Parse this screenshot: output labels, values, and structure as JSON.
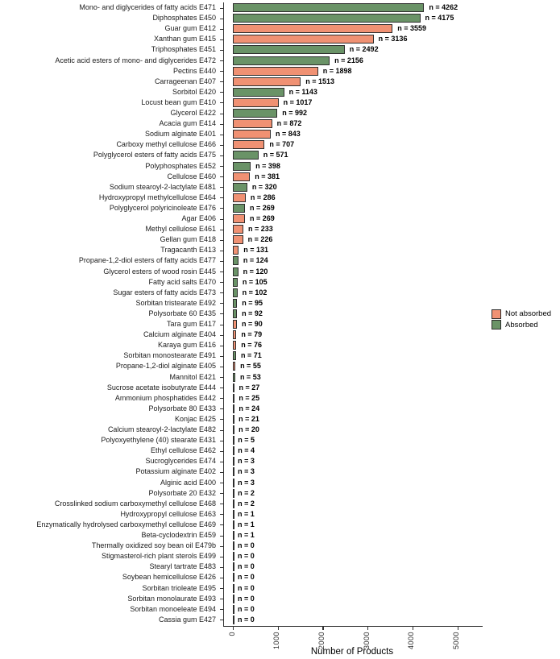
{
  "chart_data": {
    "type": "bar",
    "orientation": "horizontal",
    "title": "",
    "xlabel": "Number of Products",
    "ylabel": "",
    "xlim": [
      0,
      5500
    ],
    "xticks": [
      0,
      1000,
      2000,
      3000,
      4000,
      5000
    ],
    "grid": false,
    "legend_position": "right-middle",
    "value_label_format": "n = {value}",
    "groups": [
      {
        "name": "Not absorbed",
        "color": "#F09173"
      },
      {
        "name": "Absorbed",
        "color": "#6A9367"
      }
    ],
    "bar_border_color": "#2d2d2d",
    "bars": [
      {
        "label": "Mono- and diglycerides of fatty acids E471",
        "value": 4262,
        "group": "Absorbed"
      },
      {
        "label": "Diphosphates E450",
        "value": 4175,
        "group": "Absorbed"
      },
      {
        "label": "Guar gum E412",
        "value": 3559,
        "group": "Not absorbed"
      },
      {
        "label": "Xanthan gum E415",
        "value": 3136,
        "group": "Not absorbed"
      },
      {
        "label": "Triphosphates E451",
        "value": 2492,
        "group": "Absorbed"
      },
      {
        "label": "Acetic acid esters of mono- and diglycerides E472",
        "value": 2156,
        "group": "Absorbed"
      },
      {
        "label": "Pectins E440",
        "value": 1898,
        "group": "Not absorbed"
      },
      {
        "label": "Carrageenan E407",
        "value": 1513,
        "group": "Not absorbed"
      },
      {
        "label": "Sorbitol E420",
        "value": 1143,
        "group": "Absorbed"
      },
      {
        "label": "Locust bean gum E410",
        "value": 1017,
        "group": "Not absorbed"
      },
      {
        "label": "Glycerol E422",
        "value": 992,
        "group": "Absorbed"
      },
      {
        "label": "Acacia gum E414",
        "value": 872,
        "group": "Not absorbed"
      },
      {
        "label": "Sodium alginate E401",
        "value": 843,
        "group": "Not absorbed"
      },
      {
        "label": "Carboxy methyl cellulose E466",
        "value": 707,
        "group": "Not absorbed"
      },
      {
        "label": "Polyglycerol esters of fatty acids E475",
        "value": 571,
        "group": "Absorbed"
      },
      {
        "label": "Polyphosphates E452",
        "value": 398,
        "group": "Absorbed"
      },
      {
        "label": "Cellulose E460",
        "value": 381,
        "group": "Not absorbed"
      },
      {
        "label": "Sodium stearoyl-2-lactylate E481",
        "value": 320,
        "group": "Absorbed"
      },
      {
        "label": "Hydroxypropyl methylcellulose E464",
        "value": 286,
        "group": "Not absorbed"
      },
      {
        "label": "Polyglycerol polyricinoleate E476",
        "value": 269,
        "group": "Absorbed"
      },
      {
        "label": "Agar E406",
        "value": 269,
        "group": "Not absorbed"
      },
      {
        "label": "Methyl cellulose E461",
        "value": 233,
        "group": "Not absorbed"
      },
      {
        "label": "Gellan gum E418",
        "value": 226,
        "group": "Not absorbed"
      },
      {
        "label": "Tragacanth E413",
        "value": 131,
        "group": "Not absorbed"
      },
      {
        "label": "Propane-1,2-diol esters of fatty acids E477",
        "value": 124,
        "group": "Absorbed"
      },
      {
        "label": "Glycerol esters of wood rosin E445",
        "value": 120,
        "group": "Absorbed"
      },
      {
        "label": "Fatty acid salts E470",
        "value": 105,
        "group": "Absorbed"
      },
      {
        "label": "Sugar esters of fatty acids E473",
        "value": 102,
        "group": "Absorbed"
      },
      {
        "label": "Sorbitan tristearate E492",
        "value": 95,
        "group": "Absorbed"
      },
      {
        "label": "Polysorbate 60 E435",
        "value": 92,
        "group": "Absorbed"
      },
      {
        "label": "Tara gum E417",
        "value": 90,
        "group": "Not absorbed"
      },
      {
        "label": "Calcium alginate E404",
        "value": 79,
        "group": "Not absorbed"
      },
      {
        "label": "Karaya gum E416",
        "value": 76,
        "group": "Not absorbed"
      },
      {
        "label": "Sorbitan monostearate E491",
        "value": 71,
        "group": "Absorbed"
      },
      {
        "label": "Propane-1,2-diol alginate E405",
        "value": 55,
        "group": "Not absorbed"
      },
      {
        "label": "Mannitol E421",
        "value": 53,
        "group": "Absorbed"
      },
      {
        "label": "Sucrose acetate isobutyrate E444",
        "value": 27,
        "group": "Absorbed"
      },
      {
        "label": "Ammonium phosphatides E442",
        "value": 25,
        "group": "Absorbed"
      },
      {
        "label": "Polysorbate 80 E433",
        "value": 24,
        "group": "Absorbed"
      },
      {
        "label": "Konjac E425",
        "value": 21,
        "group": "Not absorbed"
      },
      {
        "label": "Calcium stearoyl-2-lactylate E482",
        "value": 20,
        "group": "Absorbed"
      },
      {
        "label": "Polyoxyethylene (40) stearate E431",
        "value": 5,
        "group": "Absorbed"
      },
      {
        "label": "Ethyl cellulose E462",
        "value": 4,
        "group": "Not absorbed"
      },
      {
        "label": "Sucroglycerides E474",
        "value": 3,
        "group": "Absorbed"
      },
      {
        "label": "Potassium alginate E402",
        "value": 3,
        "group": "Not absorbed"
      },
      {
        "label": "Alginic acid E400",
        "value": 3,
        "group": "Not absorbed"
      },
      {
        "label": "Polysorbate 20 E432",
        "value": 2,
        "group": "Absorbed"
      },
      {
        "label": "Crosslinked sodium carboxymethyl cellulose E468",
        "value": 2,
        "group": "Not absorbed"
      },
      {
        "label": "Hydroxypropyl cellulose E463",
        "value": 1,
        "group": "Not absorbed"
      },
      {
        "label": "Enzymatically hydrolysed carboxymethyl cellulose E469",
        "value": 1,
        "group": "Not absorbed"
      },
      {
        "label": "Beta-cyclodextrin E459",
        "value": 1,
        "group": "Not absorbed"
      },
      {
        "label": "Thermally oxidized soy bean oil E479b",
        "value": 0,
        "group": "Absorbed"
      },
      {
        "label": "Stigmasterol-rich plant sterols E499",
        "value": 0,
        "group": "Absorbed"
      },
      {
        "label": "Stearyl tartrate E483",
        "value": 0,
        "group": "Absorbed"
      },
      {
        "label": "Soybean hemicellulose E426",
        "value": 0,
        "group": "Not absorbed"
      },
      {
        "label": "Sorbitan trioleate E495",
        "value": 0,
        "group": "Absorbed"
      },
      {
        "label": "Sorbitan monolaurate E493",
        "value": 0,
        "group": "Absorbed"
      },
      {
        "label": "Sorbitan monoeleate E494",
        "value": 0,
        "group": "Absorbed"
      },
      {
        "label": "Cassia gum E427",
        "value": 0,
        "group": "Not absorbed"
      }
    ]
  }
}
